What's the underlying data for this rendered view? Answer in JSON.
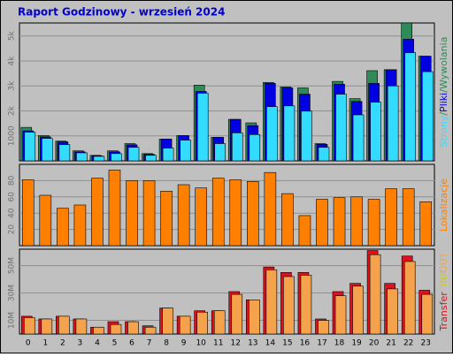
{
  "title": "Raport Godzinowy -  wrzesień 2024",
  "legend_separator": "/",
  "chart_data": [
    {
      "type": "bar",
      "categories": [
        "0",
        "1",
        "2",
        "3",
        "4",
        "5",
        "6",
        "7",
        "8",
        "9",
        "10",
        "11",
        "12",
        "13",
        "14",
        "15",
        "16",
        "17",
        "18",
        "19",
        "20",
        "21",
        "22",
        "23"
      ],
      "series": [
        {
          "name": "Wywolania",
          "color": "#2e8b57",
          "values": [
            1340,
            1010,
            790,
            400,
            220,
            400,
            690,
            290,
            870,
            1010,
            3030,
            940,
            1660,
            1520,
            3140,
            2960,
            2920,
            690,
            3180,
            2490,
            3610,
            3650,
            5520,
            4190
          ]
        },
        {
          "name": "Pliki",
          "color": "#0000e0",
          "values": [
            1200,
            960,
            760,
            360,
            200,
            360,
            640,
            260,
            870,
            1010,
            2780,
            940,
            1660,
            1410,
            3100,
            2920,
            2670,
            660,
            3070,
            2380,
            3100,
            3650,
            4870,
            4190
          ]
        },
        {
          "name": "Strony",
          "color": "#33dcff",
          "values": [
            1150,
            900,
            650,
            320,
            180,
            290,
            540,
            220,
            510,
            830,
            2710,
            690,
            1120,
            1050,
            2170,
            2200,
            1990,
            540,
            2670,
            1840,
            2350,
            3000,
            4330,
            3570
          ]
        }
      ],
      "ylim": [
        0,
        5520
      ],
      "yticks": [
        1000,
        {
          "value": 2000,
          "label": "2k"
        },
        {
          "value": 3000,
          "label": "3k"
        },
        {
          "value": 4000,
          "label": "4k"
        },
        {
          "value": 5000,
          "label": "5k"
        }
      ],
      "grid": true
    },
    {
      "type": "bar",
      "series": [
        {
          "name": "Lokalizacje",
          "color": "#ff8000",
          "values": [
            81,
            62,
            46,
            50,
            83,
            93,
            80,
            80,
            67,
            75,
            71,
            83,
            81,
            79,
            90,
            64,
            37,
            57,
            59,
            60,
            57,
            70,
            70,
            54
          ]
        }
      ],
      "ylim": [
        0,
        100
      ],
      "yticks": [
        20,
        40,
        60,
        80
      ],
      "grid": true
    },
    {
      "type": "bar",
      "series": [
        {
          "name": "Transfer",
          "color": "#e0101c",
          "values": [
            13,
            11,
            13,
            11,
            5,
            9,
            9,
            6,
            19,
            13,
            17,
            17,
            31,
            25,
            49,
            45,
            45,
            11,
            31,
            37,
            61,
            37,
            57,
            32
          ]
        },
        {
          "name": "OUT",
          "color": "#f4a24c",
          "values": [
            12,
            11,
            13,
            11,
            5,
            7,
            9,
            5,
            19,
            13,
            16,
            17,
            29,
            25,
            47,
            42,
            43,
            10,
            28,
            35,
            58,
            33,
            53,
            29
          ]
        }
      ],
      "legend_extra": {
        "text": "IN",
        "color": "#c8c832"
      },
      "ylim": [
        0,
        62
      ],
      "yticks": [
        {
          "value": 10,
          "label": "10M"
        },
        {
          "value": 30,
          "label": "30M"
        },
        {
          "value": 50,
          "label": "50M"
        }
      ],
      "grid": true
    }
  ]
}
